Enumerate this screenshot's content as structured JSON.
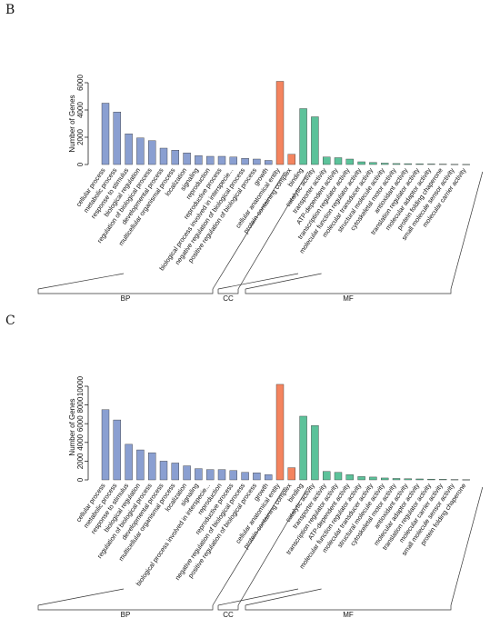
{
  "panels": [
    {
      "letter": "B",
      "chart_data": {
        "type": "bar",
        "ylabel": "Number of Genes",
        "ylim": [
          0,
          6000
        ],
        "yticks": [
          0,
          2000,
          4000,
          6000
        ],
        "groups": [
          {
            "name": "BP",
            "color": "#8a9fd1",
            "categories": [
              "cellular process",
              "metabolic process",
              "response to stimulus",
              "biological regulation",
              "regulation of biological process",
              "developmental process",
              "multicellular organismal process",
              "localization",
              "signaling",
              "reproduction",
              "reproductive process",
              "biological process involved in interspecie...",
              "negative regulation of biological process",
              "positive regulation of biological process",
              "growth"
            ],
            "values": [
              4500,
              3850,
              2250,
              1950,
              1750,
              1200,
              1050,
              850,
              650,
              600,
              600,
              550,
              450,
              400,
              300
            ]
          },
          {
            "name": "CC",
            "color": "#f4845f",
            "categories": [
              "cellular anatomical entity",
              "protein-containing complex"
            ],
            "values": [
              6100,
              750
            ]
          },
          {
            "name": "MF",
            "color": "#5cc29a",
            "categories": [
              "binding",
              "catalytic activity",
              "transporter activity",
              "ATP-dependent activity",
              "transcription regulator activity",
              "molecular function regulator activity",
              "molecular transducer activity",
              "structural molecule activity",
              "cytoskeletal motor activity",
              "antioxidant activity",
              "translation regulator activity",
              "molecular adaptor activity",
              "protein folding chaperone",
              "small molecule sensor activity",
              "molecular carrier activity"
            ],
            "values": [
              4100,
              3500,
              550,
              500,
              400,
              200,
              150,
              100,
              70,
              60,
              50,
              40,
              30,
              20,
              10
            ]
          }
        ]
      }
    },
    {
      "letter": "C",
      "chart_data": {
        "type": "bar",
        "ylabel": "Number of Genes",
        "ylim": [
          0,
          10000
        ],
        "yticks": [
          0,
          2000,
          4000,
          6000,
          8000,
          10000
        ],
        "groups": [
          {
            "name": "BP",
            "color": "#8a9fd1",
            "categories": [
              "cellular process",
              "metabolic process",
              "response to stimulus",
              "biological regulation",
              "regulation of biological process",
              "developmental process",
              "multicellular organismal process",
              "localization",
              "signaling",
              "biological process involved in interspecie...",
              "reproduction",
              "reproductive process",
              "negative regulation of biological process",
              "positive regulation of biological process",
              "growth"
            ],
            "values": [
              7500,
              6400,
              3800,
              3200,
              2900,
              2000,
              1800,
              1500,
              1200,
              1100,
              1100,
              1000,
              800,
              750,
              550
            ]
          },
          {
            "name": "CC",
            "color": "#f4845f",
            "categories": [
              "cellular anatomical entity",
              "protein-containing complex"
            ],
            "values": [
              10200,
              1300
            ]
          },
          {
            "name": "MF",
            "color": "#5cc29a",
            "categories": [
              "binding",
              "catalytic activity",
              "transporter activity",
              "transcription regulator activity",
              "ATP-dependent activity",
              "molecular function regulator activity",
              "molecular transducer activity",
              "structural molecule activity",
              "cytoskeletal motor activity",
              "antioxidant activity",
              "molecular adaptor activity",
              "translation regulator activity",
              "molecular carrier activity",
              "small molecule sensor activity",
              "protein folding chaperone"
            ],
            "values": [
              6800,
              5800,
              900,
              800,
              550,
              350,
              300,
              200,
              150,
              120,
              100,
              80,
              60,
              40,
              30
            ]
          }
        ]
      }
    }
  ]
}
